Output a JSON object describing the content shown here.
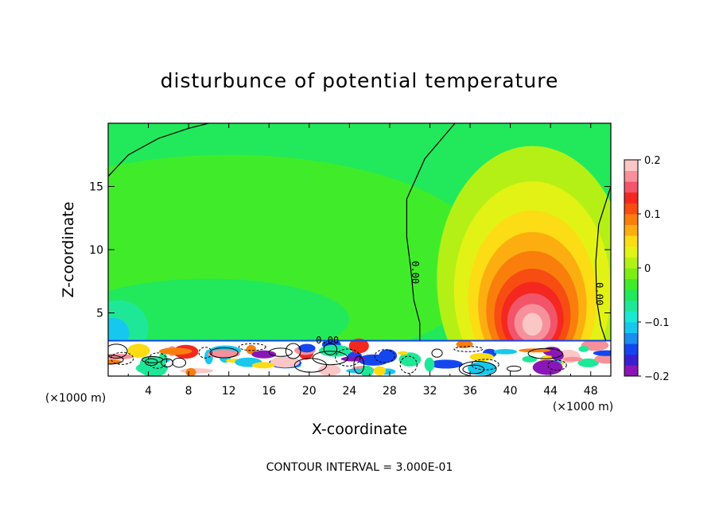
{
  "chart_data": {
    "type": "heatmap",
    "title": "disturbunce of potential temperature",
    "xlabel": "X-coordinate",
    "ylabel": "Z-coordinate",
    "x_unit_left": "(×1000 m)",
    "x_unit_right": "(×1000 m)",
    "xlim": [
      0,
      50
    ],
    "ylim": [
      0,
      20
    ],
    "xticks": [
      4,
      8,
      12,
      16,
      20,
      24,
      28,
      32,
      36,
      40,
      44,
      48
    ],
    "xtick_labels": [
      "4",
      "8",
      "12",
      "16",
      "20",
      "24",
      "28",
      "32",
      "36",
      "40",
      "44",
      "48"
    ],
    "yticks": [
      5,
      10,
      15
    ],
    "ytick_labels": [
      "5",
      "10",
      "15"
    ],
    "colorbar": {
      "min": -0.2,
      "max": 0.2,
      "ticks": [
        0.2,
        0.1,
        0,
        -0.1,
        -0.2
      ],
      "tick_labels": [
        "0.2",
        "0.1",
        "0",
        "−0.1",
        "−0.2"
      ],
      "colors": [
        "#8a16b8",
        "#3a1fd0",
        "#1446f0",
        "#1b8cf0",
        "#16c8ee",
        "#19e8d4",
        "#1ee898",
        "#22e85c",
        "#40ec2a",
        "#7cee14",
        "#b4f016",
        "#e2f214",
        "#fcdc14",
        "#fcae10",
        "#fa7e0c",
        "#f74c12",
        "#f42820",
        "#f2546a",
        "#f7909a",
        "#fbc6c6"
      ]
    },
    "contour_labels": [
      {
        "x": 30.5,
        "y": 8.2,
        "text": "0.00"
      },
      {
        "x": 48.8,
        "y": 6.5,
        "text": "0.00"
      },
      {
        "x": 21.8,
        "y": 2.8,
        "text": "0.00"
      }
    ],
    "features": [
      {
        "name": "warm_plume",
        "x_center": 42.2,
        "z_center": 4.2,
        "peak": 0.2
      },
      {
        "name": "cool_band_west",
        "x_center": 10,
        "z_center": 4.5,
        "peak": -0.06
      },
      {
        "name": "surface_turbulent_layer",
        "z_top": 2.8
      }
    ],
    "footnote": "CONTOUR INTERVAL = 3.000E-01"
  }
}
